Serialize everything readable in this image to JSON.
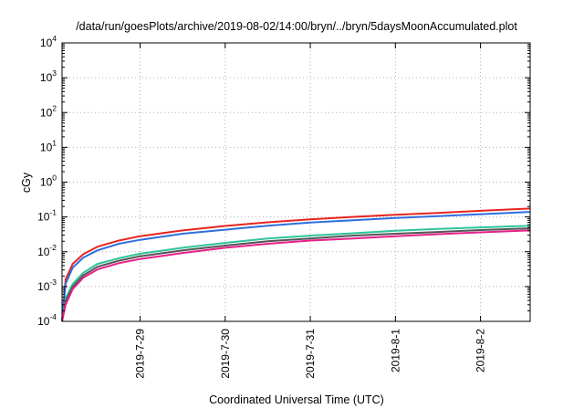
{
  "chart_data": {
    "type": "line",
    "title": "/data/run/goesPlots/archive/2019-08-02/14:00/bryn/../bryn/5daysMoonAccumulated.plot",
    "xlabel": "Coordinated Universal Time (UTC)",
    "ylabel": "cGy",
    "y_scale": "log",
    "ylim": [
      0.0001,
      10000
    ],
    "xlim": [
      "2019-07-28 02:00",
      "2019-08-02 14:00"
    ],
    "grid": true,
    "y_ticks": [
      {
        "base": "10",
        "exp": "-4"
      },
      {
        "base": "10",
        "exp": "-3"
      },
      {
        "base": "10",
        "exp": "-2"
      },
      {
        "base": "10",
        "exp": "-1"
      },
      {
        "base": "10",
        "exp": "0"
      },
      {
        "base": "10",
        "exp": "1"
      },
      {
        "base": "10",
        "exp": "2"
      },
      {
        "base": "10",
        "exp": "3"
      },
      {
        "base": "10",
        "exp": "4"
      }
    ],
    "x_ticks": [
      {
        "label": "2019-7-29",
        "value": "2019-07-29"
      },
      {
        "label": "2019-7-30",
        "value": "2019-07-30"
      },
      {
        "label": "2019-7-31",
        "value": "2019-07-31"
      },
      {
        "label": "2019-8-1",
        "value": "2019-08-01"
      },
      {
        "label": "2019-8-2",
        "value": "2019-08-02"
      }
    ],
    "x": [
      "2019-07-28 02:00",
      "2019-07-28 03:00",
      "2019-07-28 05:00",
      "2019-07-28 08:00",
      "2019-07-28 12:00",
      "2019-07-28 18:00",
      "2019-07-29 00:00",
      "2019-07-29 12:00",
      "2019-07-30 00:00",
      "2019-07-30 12:00",
      "2019-07-31 00:00",
      "2019-07-31 12:00",
      "2019-08-01 00:00",
      "2019-08-01 12:00",
      "2019-08-02 00:00",
      "2019-08-02 14:00"
    ],
    "series": [
      {
        "color": "#e8241f",
        "values": [
          0.0001,
          0.0016,
          0.0045,
          0.0085,
          0.014,
          0.021,
          0.028,
          0.041,
          0.055,
          0.07,
          0.085,
          0.1,
          0.115,
          0.13,
          0.15,
          0.175
        ]
      },
      {
        "color": "#2e6fdf",
        "values": [
          0.0001,
          0.0012,
          0.0035,
          0.0068,
          0.011,
          0.017,
          0.022,
          0.033,
          0.043,
          0.056,
          0.069,
          0.08,
          0.093,
          0.106,
          0.12,
          0.14
        ]
      },
      {
        "color": "#2ec49a",
        "values": [
          0.0001,
          0.00045,
          0.0012,
          0.0025,
          0.0045,
          0.0065,
          0.0088,
          0.013,
          0.018,
          0.024,
          0.029,
          0.034,
          0.04,
          0.045,
          0.05,
          0.056
        ]
      },
      {
        "color": "#555555",
        "values": [
          0.0001,
          0.00038,
          0.001,
          0.0021,
          0.0037,
          0.0055,
          0.0074,
          0.011,
          0.015,
          0.02,
          0.024,
          0.029,
          0.033,
          0.037,
          0.042,
          0.047
        ]
      },
      {
        "color": "#e81f8a",
        "values": [
          0.0001,
          0.0003,
          0.00085,
          0.0018,
          0.0031,
          0.0047,
          0.0062,
          0.0092,
          0.013,
          0.017,
          0.021,
          0.024,
          0.028,
          0.032,
          0.036,
          0.041
        ]
      }
    ]
  }
}
